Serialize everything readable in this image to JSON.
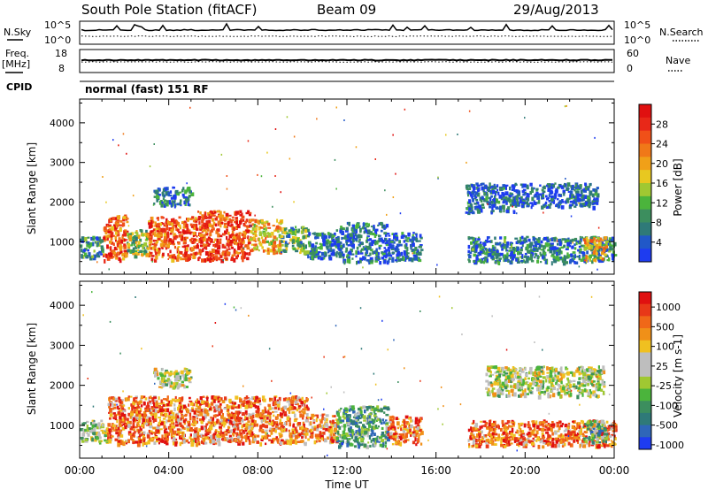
{
  "header": {
    "station": "South Pole Station (fitACF)",
    "beam": "Beam 09",
    "date": "29/Aug/2013"
  },
  "summary": {
    "nsky_label": "N.Sky",
    "nsky_ticks": [
      "10^5",
      "10^0"
    ],
    "nsearch_label": "N.Search",
    "nsearch_ticks": [
      "10^5",
      "10^0"
    ],
    "freq_label": "Freq.",
    "freq_unit": "[MHz]",
    "freq_ticks": [
      "18",
      "8"
    ],
    "nave_label": "Nave",
    "nave_ticks": [
      "60",
      "0"
    ],
    "cpid_label": "CPID",
    "cpid_text": "normal (fast) 151 RF"
  },
  "chart_data": [
    {
      "type": "heatmap",
      "name": "power-panel",
      "ylabel": "Slant Range [km]",
      "yticks": [
        1000,
        2000,
        3000,
        4000
      ],
      "ylim": [
        180,
        4600
      ],
      "xlim": [
        0,
        24
      ],
      "colorbar": {
        "label": "Power [dB]",
        "ticks": [
          "4",
          "8",
          "12",
          "16",
          "20",
          "24",
          "28"
        ],
        "colors": [
          "#1e3cf0",
          "#2158c8",
          "#2f7a78",
          "#3c8e5e",
          "#4bb43c",
          "#a0c832",
          "#e8c820",
          "#f0a018",
          "#f07818",
          "#f05018",
          "#e82818",
          "#e01010"
        ]
      },
      "regions": [
        {
          "t0": 0.0,
          "t1": 1.0,
          "r0": 620,
          "r1": 1150,
          "v": 0.22
        },
        {
          "t0": 1.0,
          "t1": 2.1,
          "r0": 560,
          "r1": 1700,
          "v": 0.78
        },
        {
          "t0": 2.1,
          "t1": 3.0,
          "r0": 680,
          "r1": 1350,
          "v": 0.42
        },
        {
          "t0": 3.0,
          "t1": 5.2,
          "r0": 560,
          "r1": 1650,
          "v": 0.78
        },
        {
          "t0": 5.2,
          "t1": 7.6,
          "r0": 560,
          "r1": 1800,
          "v": 0.82
        },
        {
          "t0": 7.6,
          "t1": 9.0,
          "r0": 760,
          "r1": 1580,
          "v": 0.6
        },
        {
          "t0": 9.0,
          "t1": 10.2,
          "r0": 750,
          "r1": 1400,
          "v": 0.35
        },
        {
          "t0": 3.3,
          "t1": 5.0,
          "r0": 1950,
          "r1": 2400,
          "v": 0.2
        },
        {
          "t0": 10.2,
          "t1": 11.5,
          "r0": 600,
          "r1": 1250,
          "v": 0.18
        },
        {
          "t0": 11.5,
          "t1": 13.8,
          "r0": 500,
          "r1": 1500,
          "v": 0.16
        },
        {
          "t0": 13.8,
          "t1": 15.3,
          "r0": 550,
          "r1": 1250,
          "v": 0.14
        },
        {
          "t0": 17.4,
          "t1": 24.0,
          "r0": 500,
          "r1": 1150,
          "v": 0.2
        },
        {
          "t0": 17.3,
          "t1": 19.5,
          "r0": 1750,
          "r1": 2500,
          "v": 0.14
        },
        {
          "t0": 19.5,
          "t1": 23.2,
          "r0": 1900,
          "r1": 2500,
          "v": 0.12
        },
        {
          "t0": 22.6,
          "t1": 23.6,
          "r0": 550,
          "r1": 1150,
          "v": 0.6
        }
      ]
    },
    {
      "type": "heatmap",
      "name": "velocity-panel",
      "ylabel": "Slant Range [km]",
      "yticks": [
        1000,
        2000,
        3000,
        4000
      ],
      "ylim": [
        180,
        4600
      ],
      "xlim": [
        0,
        24
      ],
      "xticks": [
        "00:00",
        "04:00",
        "08:00",
        "12:00",
        "16:00",
        "20:00",
        "00:00"
      ],
      "xlabel": "Time UT",
      "colorbar": {
        "label": "Velocity [m s-1]",
        "ticks": [
          "1000",
          "500",
          "100",
          "25",
          "-25",
          "-100",
          "-500",
          "-1000"
        ],
        "colors": [
          "#1e3cf0",
          "#2f66b8",
          "#2f7a78",
          "#3c8e5e",
          "#4bb43c",
          "#a0c832",
          "#bebebe",
          "#bebebe",
          "#f0c020",
          "#f09018",
          "#f06818",
          "#e83818",
          "#e01010"
        ]
      },
      "regions": [
        {
          "t0": 0.0,
          "t1": 1.2,
          "r0": 620,
          "r1": 1150,
          "v": 0.45
        },
        {
          "t0": 1.2,
          "t1": 10.2,
          "r0": 560,
          "r1": 1750,
          "v": 0.78
        },
        {
          "t0": 3.3,
          "t1": 5.0,
          "r0": 1950,
          "r1": 2450,
          "v": 0.5
        },
        {
          "t0": 10.2,
          "t1": 11.5,
          "r0": 600,
          "r1": 1300,
          "v": 0.72
        },
        {
          "t0": 11.5,
          "t1": 13.8,
          "r0": 500,
          "r1": 1500,
          "v": 0.3
        },
        {
          "t0": 13.8,
          "t1": 15.3,
          "r0": 550,
          "r1": 1250,
          "v": 0.8
        },
        {
          "t0": 17.4,
          "t1": 24.0,
          "r0": 500,
          "r1": 1150,
          "v": 0.8
        },
        {
          "t0": 18.2,
          "t1": 23.5,
          "r0": 1750,
          "r1": 2500,
          "v": 0.5
        },
        {
          "t0": 22.6,
          "t1": 23.6,
          "r0": 550,
          "r1": 1150,
          "v": 0.3
        }
      ]
    }
  ]
}
